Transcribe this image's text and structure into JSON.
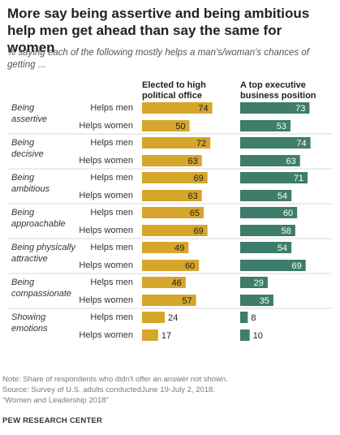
{
  "title": "More say being assertive and being ambitious help men get ahead than say the same for women",
  "subtitle": "% saying each of the following mostly helps a man's/woman's chances of getting ...",
  "column_headers": {
    "left": "Elected to high political office",
    "right": "A top executive business position"
  },
  "colors": {
    "political": "#D5A62B",
    "business": "#3E7D6B",
    "divider": "#d9d9d9"
  },
  "chart_data": [
    {
      "type": "bar",
      "orientation": "horizontal",
      "title": "Elected to high political office",
      "categories": [
        "Being assertive",
        "Being decisive",
        "Being ambitious",
        "Being approachable",
        "Being physically attractive",
        "Being compassionate",
        "Showing emotions"
      ],
      "series": [
        {
          "name": "Helps men",
          "values": [
            74,
            72,
            69,
            65,
            49,
            46,
            24
          ]
        },
        {
          "name": "Helps women",
          "values": [
            50,
            63,
            63,
            69,
            60,
            57,
            17
          ]
        }
      ]
    },
    {
      "type": "bar",
      "orientation": "horizontal",
      "title": "A top executive business position",
      "categories": [
        "Being assertive",
        "Being decisive",
        "Being ambitious",
        "Being approachable",
        "Being physically attractive",
        "Being compassionate",
        "Showing emotions"
      ],
      "series": [
        {
          "name": "Helps men",
          "values": [
            73,
            74,
            71,
            60,
            54,
            29,
            8
          ]
        },
        {
          "name": "Helps women",
          "values": [
            53,
            63,
            54,
            58,
            69,
            35,
            10
          ]
        }
      ]
    }
  ],
  "groups": [
    {
      "label_lines": [
        "Being",
        "assertive"
      ]
    },
    {
      "label_lines": [
        "Being",
        "decisive"
      ]
    },
    {
      "label_lines": [
        "Being",
        "ambitious"
      ]
    },
    {
      "label_lines": [
        "Being",
        "approachable"
      ]
    },
    {
      "label_lines": [
        "Being physically",
        "attractive"
      ]
    },
    {
      "label_lines": [
        "Being",
        "compassionate"
      ]
    },
    {
      "label_lines": [
        "Showing",
        "emotions"
      ]
    }
  ],
  "row_labels": [
    "Helps men",
    "Helps women"
  ],
  "footer": {
    "note": "Note: Share of respondents who didn't offer an answer not shown.",
    "source": "Source: Survey of U.S. adults conductedJune 19-July 2, 2018.",
    "report": "“Women and Leadership 2018”",
    "org": "PEW RESEARCH CENTER"
  }
}
